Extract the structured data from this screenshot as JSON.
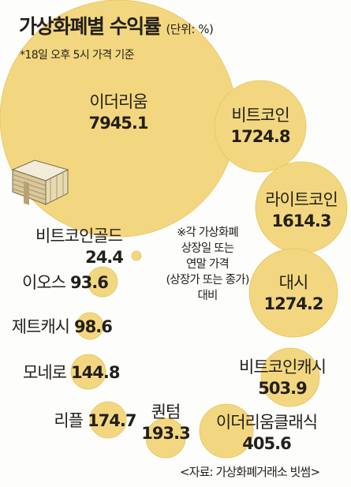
{
  "title": "가상화폐별 수익률",
  "unit": "(단위: %)",
  "subtitle": "*18일 오후 5시 가격 기준",
  "note": [
    "※각 가상화폐",
    "상장일 또는",
    "연말 가격",
    "(상장가 또는 종가)",
    "대비"
  ],
  "source": "<자료: 가상화폐거래소 빗썸>",
  "colors": {
    "bubble": "#f3d780",
    "bubble_edge": "#e7c45a",
    "background": "#fdfdfb",
    "text": "#231f1a"
  },
  "icon": "cash-stack-icon",
  "chart_data": {
    "type": "bubble",
    "title": "가상화폐별 수익률",
    "unit": "%",
    "categories": [
      "이더리움",
      "비트코인",
      "라이트코인",
      "대시",
      "비트코인캐시",
      "이더리움클래식",
      "퀀텀",
      "리플",
      "모네로",
      "제트캐시",
      "이오스",
      "비트코인골드"
    ],
    "values": [
      7945.1,
      1724.8,
      1614.3,
      1274.2,
      503.9,
      405.6,
      193.3,
      174.7,
      144.8,
      98.6,
      93.6,
      24.4
    ],
    "value_labels": [
      "7945.1",
      "1724.8",
      "1614.3",
      "1274.2",
      "503.9",
      "405.6",
      "193.3",
      "174.7",
      "144.8",
      "98.6",
      "93.6",
      "24.4"
    ]
  }
}
